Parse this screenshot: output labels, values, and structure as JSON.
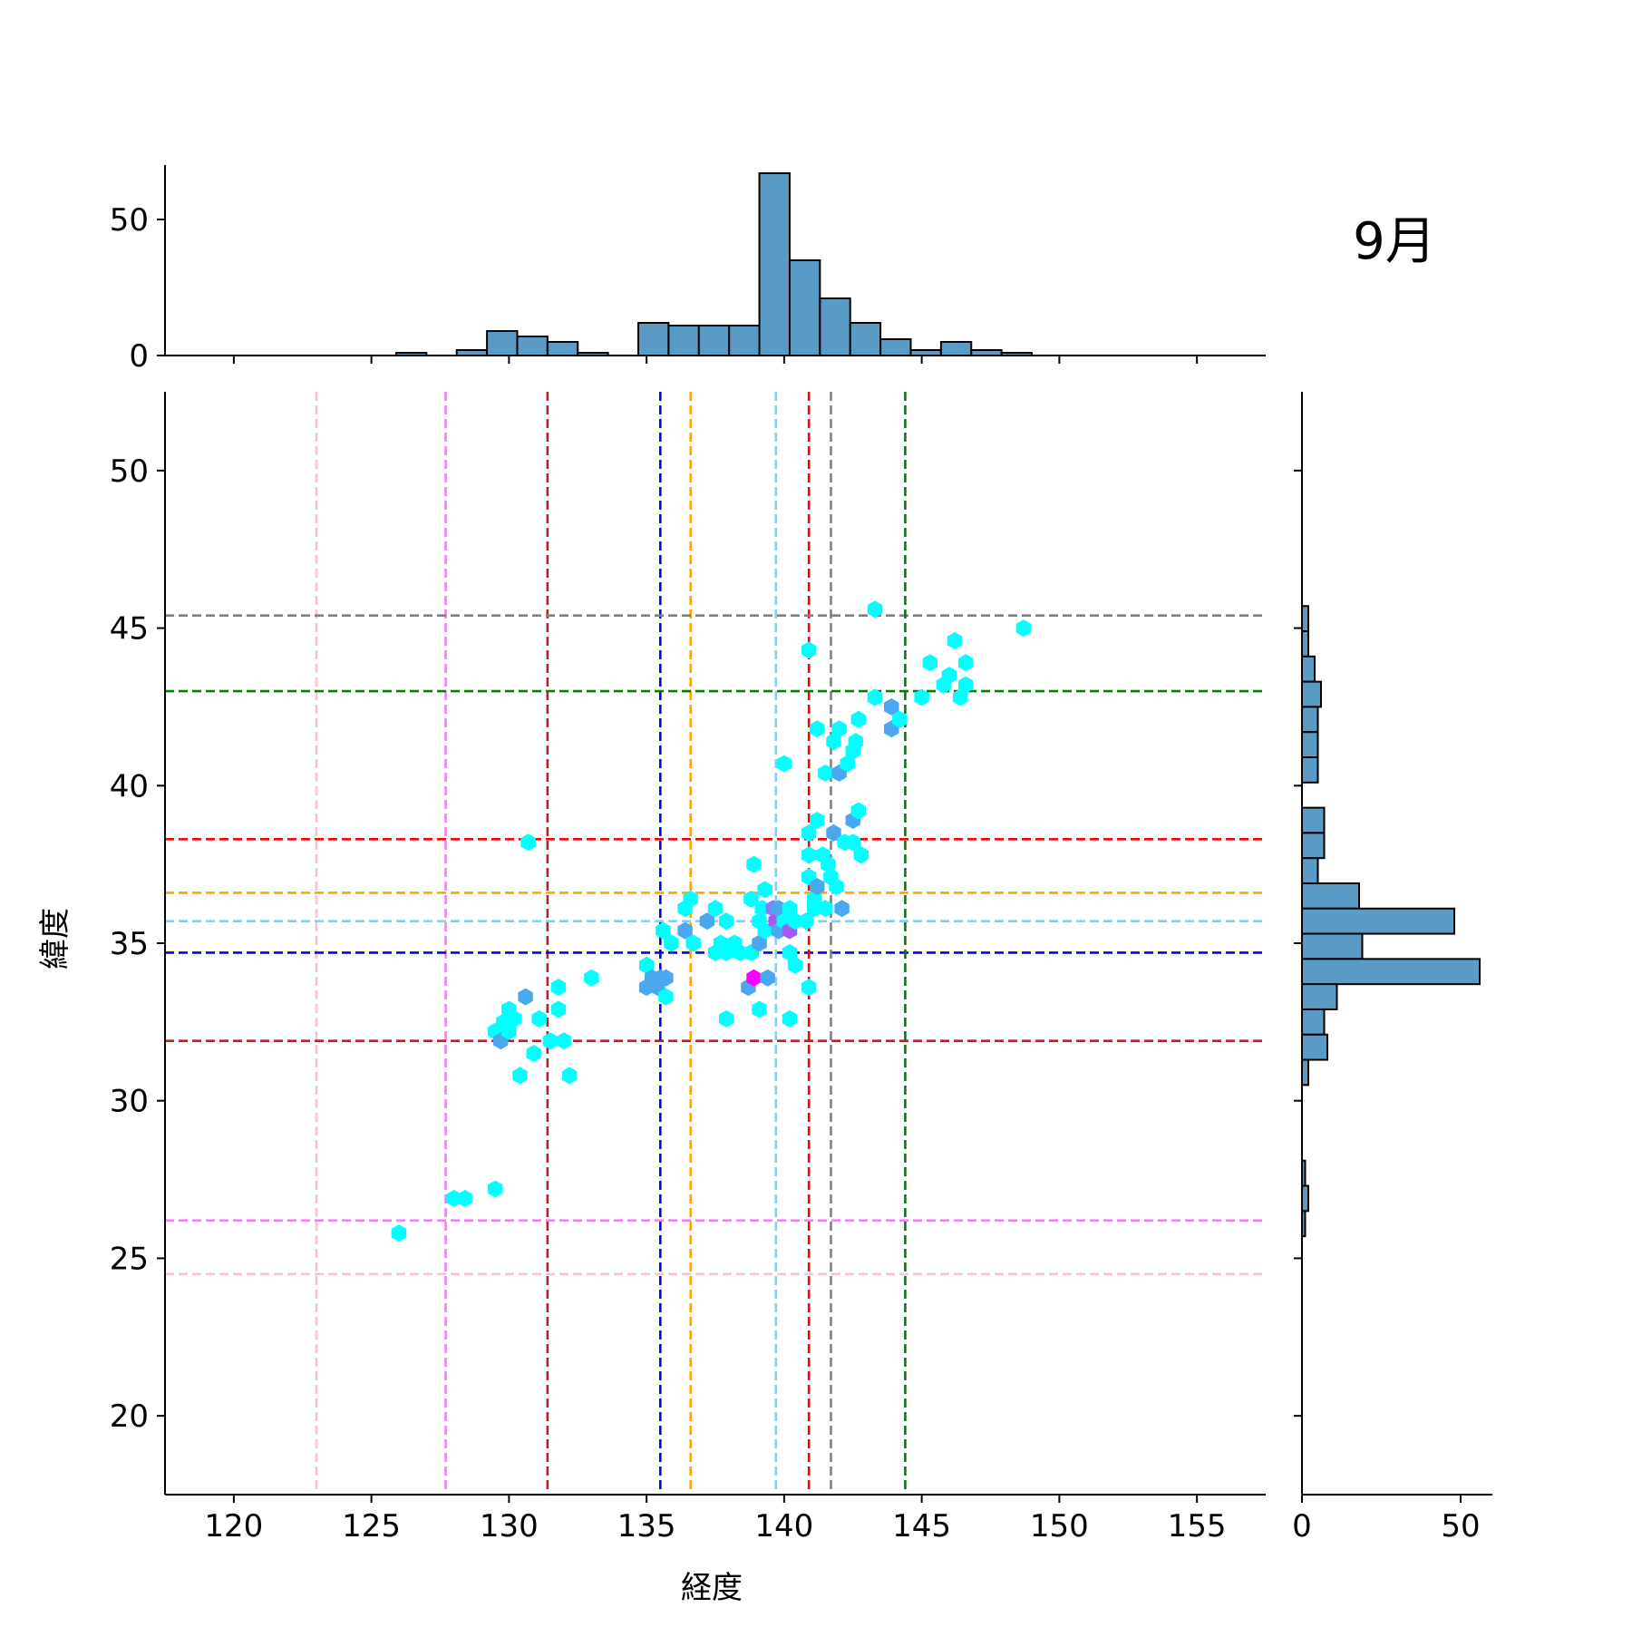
{
  "chart_data": {
    "type": "scatter",
    "subtype": "hexbin-jointplot",
    "title": "9月",
    "xlabel": "経度",
    "ylabel": "緯度",
    "xlim": [
      117.5,
      157.5
    ],
    "ylim": [
      17.5,
      52.5
    ],
    "xticks": [
      "120",
      "125",
      "130",
      "135",
      "140",
      "145",
      "150",
      "155"
    ],
    "yticks": [
      "20",
      "25",
      "30",
      "35",
      "40",
      "45",
      "50"
    ],
    "top_hist": {
      "yticks": [
        "0",
        "50"
      ],
      "ylim": [
        0,
        70
      ],
      "bin_width": 1.1,
      "bins": [
        {
          "x0": 125.9,
          "count": 1
        },
        {
          "x0": 128.1,
          "count": 2
        },
        {
          "x0": 129.2,
          "count": 9
        },
        {
          "x0": 130.3,
          "count": 7
        },
        {
          "x0": 131.4,
          "count": 5
        },
        {
          "x0": 132.5,
          "count": 1
        },
        {
          "x0": 134.7,
          "count": 12
        },
        {
          "x0": 135.8,
          "count": 11
        },
        {
          "x0": 136.9,
          "count": 11
        },
        {
          "x0": 138.0,
          "count": 11
        },
        {
          "x0": 139.1,
          "count": 67
        },
        {
          "x0": 140.2,
          "count": 35
        },
        {
          "x0": 141.3,
          "count": 21
        },
        {
          "x0": 142.4,
          "count": 12
        },
        {
          "x0": 143.5,
          "count": 6
        },
        {
          "x0": 144.6,
          "count": 2
        },
        {
          "x0": 145.7,
          "count": 5
        },
        {
          "x0": 146.8,
          "count": 2
        },
        {
          "x0": 147.9,
          "count": 1
        }
      ]
    },
    "right_hist": {
      "xticks": [
        "0",
        "50"
      ],
      "xlim": [
        0,
        60
      ],
      "bin_width": 0.8,
      "bins": [
        {
          "y0": 44.9,
          "count": 2
        },
        {
          "y0": 44.1,
          "count": 2
        },
        {
          "y0": 43.3,
          "count": 4
        },
        {
          "y0": 42.5,
          "count": 6
        },
        {
          "y0": 41.7,
          "count": 5
        },
        {
          "y0": 40.9,
          "count": 5
        },
        {
          "y0": 40.1,
          "count": 5
        },
        {
          "y0": 38.5,
          "count": 7
        },
        {
          "y0": 37.7,
          "count": 7
        },
        {
          "y0": 36.9,
          "count": 5
        },
        {
          "y0": 36.1,
          "count": 18
        },
        {
          "y0": 35.3,
          "count": 48
        },
        {
          "y0": 34.5,
          "count": 19
        },
        {
          "y0": 33.7,
          "count": 56
        },
        {
          "y0": 32.9,
          "count": 11
        },
        {
          "y0": 32.1,
          "count": 7
        },
        {
          "y0": 31.3,
          "count": 8
        },
        {
          "y0": 30.5,
          "count": 2
        },
        {
          "y0": 27.3,
          "count": 1
        },
        {
          "y0": 26.5,
          "count": 2
        },
        {
          "y0": 25.7,
          "count": 1
        }
      ]
    },
    "reference_lines": [
      {
        "color": "#ffc0cb",
        "lon": 123.0,
        "lat": 24.5
      },
      {
        "color": "#ee82ee",
        "lon": 127.7,
        "lat": 26.2
      },
      {
        "color": "#a52a2a",
        "lon": 131.4,
        "lat": 31.9
      },
      {
        "color": "#0000ff",
        "lon": 135.5,
        "lat": 34.7
      },
      {
        "color": "#ffa500",
        "lon": 136.6,
        "lat": 36.6
      },
      {
        "color": "#87ceeb",
        "lon": 139.7,
        "lat": 35.7
      },
      {
        "color": "#ff0000",
        "lon": 140.9,
        "lat": 38.3
      },
      {
        "color": "#808080",
        "lon": 141.7,
        "lat": 45.4
      },
      {
        "color": "#008000",
        "lon": 144.4,
        "lat": 43.0
      }
    ],
    "hexbins": [
      {
        "x": 126.0,
        "y": 25.8,
        "c": 1
      },
      {
        "x": 128.0,
        "y": 26.9,
        "c": 1
      },
      {
        "x": 128.4,
        "y": 26.9,
        "c": 1
      },
      {
        "x": 129.5,
        "y": 27.2,
        "c": 1
      },
      {
        "x": 129.5,
        "y": 32.2,
        "c": 1
      },
      {
        "x": 129.7,
        "y": 31.9,
        "c": 2
      },
      {
        "x": 129.8,
        "y": 32.5,
        "c": 1
      },
      {
        "x": 130.0,
        "y": 32.9,
        "c": 1
      },
      {
        "x": 130.2,
        "y": 32.6,
        "c": 1
      },
      {
        "x": 130.0,
        "y": 32.2,
        "c": 1
      },
      {
        "x": 130.4,
        "y": 30.8,
        "c": 1
      },
      {
        "x": 130.6,
        "y": 33.3,
        "c": 2
      },
      {
        "x": 130.9,
        "y": 31.5,
        "c": 1
      },
      {
        "x": 131.1,
        "y": 32.6,
        "c": 1
      },
      {
        "x": 131.5,
        "y": 31.9,
        "c": 1
      },
      {
        "x": 131.8,
        "y": 33.6,
        "c": 1
      },
      {
        "x": 131.8,
        "y": 32.9,
        "c": 1
      },
      {
        "x": 132.0,
        "y": 31.9,
        "c": 1
      },
      {
        "x": 132.2,
        "y": 30.8,
        "c": 1
      },
      {
        "x": 130.7,
        "y": 38.2,
        "c": 1
      },
      {
        "x": 133.0,
        "y": 33.9,
        "c": 1
      },
      {
        "x": 135.0,
        "y": 34.3,
        "c": 1
      },
      {
        "x": 135.2,
        "y": 33.9,
        "c": 2
      },
      {
        "x": 135.0,
        "y": 33.6,
        "c": 2
      },
      {
        "x": 135.4,
        "y": 33.6,
        "c": 2
      },
      {
        "x": 135.5,
        "y": 33.9,
        "c": 2
      },
      {
        "x": 135.7,
        "y": 33.9,
        "c": 2
      },
      {
        "x": 135.7,
        "y": 33.3,
        "c": 1
      },
      {
        "x": 135.6,
        "y": 35.4,
        "c": 1
      },
      {
        "x": 135.9,
        "y": 35.0,
        "c": 1
      },
      {
        "x": 136.4,
        "y": 35.4,
        "c": 2
      },
      {
        "x": 136.4,
        "y": 36.1,
        "c": 1
      },
      {
        "x": 136.6,
        "y": 36.4,
        "c": 1
      },
      {
        "x": 136.7,
        "y": 35.0,
        "c": 1
      },
      {
        "x": 137.2,
        "y": 35.7,
        "c": 2
      },
      {
        "x": 137.5,
        "y": 36.1,
        "c": 1
      },
      {
        "x": 137.5,
        "y": 34.7,
        "c": 1
      },
      {
        "x": 137.7,
        "y": 35.0,
        "c": 1
      },
      {
        "x": 137.9,
        "y": 35.7,
        "c": 1
      },
      {
        "x": 137.9,
        "y": 34.7,
        "c": 1
      },
      {
        "x": 138.2,
        "y": 35.0,
        "c": 1
      },
      {
        "x": 137.9,
        "y": 32.6,
        "c": 1
      },
      {
        "x": 138.4,
        "y": 34.7,
        "c": 1
      },
      {
        "x": 138.8,
        "y": 36.4,
        "c": 1
      },
      {
        "x": 138.8,
        "y": 34.7,
        "c": 1
      },
      {
        "x": 138.7,
        "y": 33.6,
        "c": 2
      },
      {
        "x": 138.9,
        "y": 33.9,
        "c": 5
      },
      {
        "x": 138.9,
        "y": 37.5,
        "c": 1
      },
      {
        "x": 139.1,
        "y": 35.0,
        "c": 2
      },
      {
        "x": 139.1,
        "y": 35.7,
        "c": 1
      },
      {
        "x": 139.2,
        "y": 36.1,
        "c": 1
      },
      {
        "x": 139.1,
        "y": 32.9,
        "c": 1
      },
      {
        "x": 139.3,
        "y": 36.7,
        "c": 1
      },
      {
        "x": 139.3,
        "y": 35.4,
        "c": 1
      },
      {
        "x": 139.4,
        "y": 33.9,
        "c": 2
      },
      {
        "x": 139.6,
        "y": 36.1,
        "c": 3
      },
      {
        "x": 139.7,
        "y": 35.7,
        "c": 4
      },
      {
        "x": 139.8,
        "y": 35.4,
        "c": 2
      },
      {
        "x": 139.8,
        "y": 36.1,
        "c": 2
      },
      {
        "x": 140.0,
        "y": 35.7,
        "c": 1
      },
      {
        "x": 140.0,
        "y": 40.7,
        "c": 1
      },
      {
        "x": 140.2,
        "y": 35.4,
        "c": 4
      },
      {
        "x": 140.2,
        "y": 36.1,
        "c": 1
      },
      {
        "x": 140.2,
        "y": 32.6,
        "c": 1
      },
      {
        "x": 140.2,
        "y": 34.7,
        "c": 1
      },
      {
        "x": 140.4,
        "y": 34.3,
        "c": 1
      },
      {
        "x": 140.4,
        "y": 35.7,
        "c": 1
      },
      {
        "x": 140.8,
        "y": 35.7,
        "c": 1
      },
      {
        "x": 140.9,
        "y": 33.6,
        "c": 1
      },
      {
        "x": 140.9,
        "y": 37.1,
        "c": 1
      },
      {
        "x": 140.9,
        "y": 37.8,
        "c": 1
      },
      {
        "x": 140.9,
        "y": 38.5,
        "c": 1
      },
      {
        "x": 140.9,
        "y": 44.3,
        "c": 1
      },
      {
        "x": 141.1,
        "y": 36.1,
        "c": 1
      },
      {
        "x": 141.1,
        "y": 36.4,
        "c": 1
      },
      {
        "x": 141.2,
        "y": 38.9,
        "c": 1
      },
      {
        "x": 141.2,
        "y": 41.8,
        "c": 1
      },
      {
        "x": 141.2,
        "y": 36.8,
        "c": 2
      },
      {
        "x": 141.4,
        "y": 37.8,
        "c": 1
      },
      {
        "x": 141.5,
        "y": 36.1,
        "c": 1
      },
      {
        "x": 141.5,
        "y": 40.4,
        "c": 1
      },
      {
        "x": 141.6,
        "y": 37.5,
        "c": 1
      },
      {
        "x": 141.7,
        "y": 37.1,
        "c": 1
      },
      {
        "x": 141.8,
        "y": 38.5,
        "c": 2
      },
      {
        "x": 141.8,
        "y": 41.4,
        "c": 1
      },
      {
        "x": 141.9,
        "y": 36.8,
        "c": 1
      },
      {
        "x": 142.0,
        "y": 40.4,
        "c": 2
      },
      {
        "x": 142.0,
        "y": 41.8,
        "c": 1
      },
      {
        "x": 142.1,
        "y": 36.1,
        "c": 2
      },
      {
        "x": 142.2,
        "y": 38.2,
        "c": 1
      },
      {
        "x": 142.3,
        "y": 40.7,
        "c": 1
      },
      {
        "x": 142.5,
        "y": 41.1,
        "c": 1
      },
      {
        "x": 142.5,
        "y": 38.2,
        "c": 1
      },
      {
        "x": 142.5,
        "y": 38.9,
        "c": 2
      },
      {
        "x": 142.6,
        "y": 41.4,
        "c": 1
      },
      {
        "x": 142.7,
        "y": 39.2,
        "c": 1
      },
      {
        "x": 142.7,
        "y": 42.1,
        "c": 1
      },
      {
        "x": 142.8,
        "y": 37.8,
        "c": 1
      },
      {
        "x": 143.3,
        "y": 42.8,
        "c": 1
      },
      {
        "x": 143.3,
        "y": 45.6,
        "c": 1
      },
      {
        "x": 143.9,
        "y": 42.5,
        "c": 2
      },
      {
        "x": 143.9,
        "y": 41.8,
        "c": 2
      },
      {
        "x": 144.2,
        "y": 42.1,
        "c": 1
      },
      {
        "x": 145.0,
        "y": 42.8,
        "c": 1
      },
      {
        "x": 145.3,
        "y": 43.9,
        "c": 1
      },
      {
        "x": 145.8,
        "y": 43.2,
        "c": 1
      },
      {
        "x": 146.0,
        "y": 43.5,
        "c": 1
      },
      {
        "x": 146.2,
        "y": 44.6,
        "c": 1
      },
      {
        "x": 146.4,
        "y": 42.8,
        "c": 1
      },
      {
        "x": 146.6,
        "y": 43.2,
        "c": 1
      },
      {
        "x": 146.6,
        "y": 43.9,
        "c": 1
      },
      {
        "x": 148.7,
        "y": 45.0,
        "c": 1
      }
    ]
  }
}
